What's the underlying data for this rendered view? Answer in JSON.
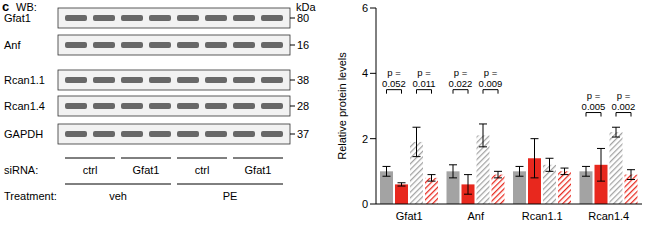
{
  "panel_label": "c",
  "blot": {
    "header": "WB:",
    "unit": "kDa",
    "rows": [
      {
        "label": "Gfat1",
        "kDa": 80
      },
      {
        "label": "Anf",
        "kDa": 16
      },
      {
        "label": "Rcan1.1",
        "kDa": 38
      },
      {
        "label": "Rcan1.4",
        "kDa": 28
      },
      {
        "label": "GAPDH",
        "kDa": 37
      }
    ],
    "siRNA": {
      "label": "siRNA:",
      "groups": [
        "ctrl",
        "Gfat1",
        "ctrl",
        "Gfat1"
      ]
    },
    "treatment": {
      "label": "Treatment:",
      "groups": [
        "veh",
        "PE"
      ]
    }
  },
  "chart_data": {
    "type": "bar",
    "y_label": "Relative protein levels",
    "categories": [
      "Gfat1",
      "Anf",
      "Rcan1.1",
      "Rcan1.4"
    ],
    "series": [
      {
        "color": "#a3a3a3",
        "line_style": "solid",
        "values": [
          1.0,
          1.0,
          1.0,
          1.0
        ],
        "errors": [
          0.15,
          0.2,
          0.15,
          0.15
        ]
      },
      {
        "color": "#e8281e",
        "line_style": "solid",
        "values": [
          0.6,
          0.6,
          1.4,
          1.2
        ],
        "errors": [
          0.05,
          0.3,
          0.6,
          0.5
        ]
      },
      {
        "color": "#a3a3a3",
        "line_style": "hatched",
        "values": [
          1.9,
          2.1,
          1.2,
          2.2
        ],
        "errors": [
          0.45,
          0.35,
          0.2,
          0.15
        ]
      },
      {
        "color": "#e8281e",
        "line_style": "hatched",
        "values": [
          0.8,
          0.9,
          1.0,
          0.9
        ],
        "errors": [
          0.1,
          0.1,
          0.1,
          0.15
        ]
      }
    ],
    "ylim": [
      0,
      6
    ],
    "yticks": [
      0,
      2,
      4,
      6
    ],
    "annotations": [
      {
        "category": "Gfat1",
        "from": 0,
        "to": 1,
        "y": 3.5,
        "lines": [
          "p =",
          "0.052"
        ]
      },
      {
        "category": "Gfat1",
        "from": 2,
        "to": 3,
        "y": 3.5,
        "lines": [
          "p =",
          "0.011"
        ]
      },
      {
        "category": "Anf",
        "from": 0,
        "to": 1,
        "y": 3.5,
        "lines": [
          "p =",
          "0.022"
        ]
      },
      {
        "category": "Anf",
        "from": 2,
        "to": 3,
        "y": 3.5,
        "lines": [
          "p =",
          "0.009"
        ]
      },
      {
        "category": "Rcan1.4",
        "from": 0,
        "to": 1,
        "y": 2.8,
        "lines": [
          "p =",
          "0.005"
        ]
      },
      {
        "category": "Rcan1.4",
        "from": 2,
        "to": 3,
        "y": 2.8,
        "lines": [
          "p =",
          "0.002"
        ]
      }
    ]
  }
}
